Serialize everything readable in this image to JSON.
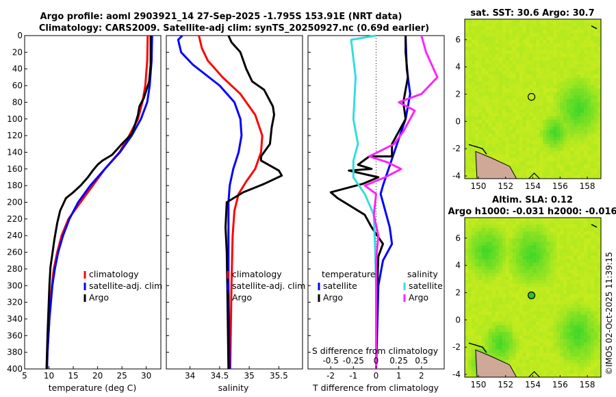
{
  "header": {
    "title_line1": "Argo profile: aoml 2903921_14 27-Sep-2025 -1.795S 153.91E (NRT data)",
    "title_line2": "Climatology: CARS2009. Satellite-adj clim: synTS_20250927.nc (0.69d earlier)"
  },
  "watermark": "©IMOS 02-Oct-2025 11:39:15",
  "colors": {
    "climatology": "#ff0000",
    "satellite": "#0000ff",
    "argo": "#000000",
    "sal_satellite": "#33dddd",
    "sal_argo": "#ff22ff",
    "map_base": "#c8ec1e",
    "map_dark": "#44dd22",
    "land": "#d0a898"
  },
  "chart_data": [
    {
      "type": "line",
      "id": "temperature",
      "xlabel": "temperature (deg C)",
      "ylabel": "",
      "xlim": [
        5,
        33
      ],
      "ylim": [
        400,
        0
      ],
      "xticks": [
        "5",
        "10",
        "15",
        "20",
        "25",
        "30"
      ],
      "yticks": [
        "0",
        "20",
        "40",
        "60",
        "80",
        "100",
        "120",
        "140",
        "160",
        "180",
        "200",
        "220",
        "240",
        "260",
        "280",
        "300",
        "320",
        "340",
        "360",
        "380",
        "400"
      ],
      "legend": [
        "climatology",
        "satellite-adj. clim",
        "Argo"
      ],
      "series": [
        {
          "name": "climatology",
          "color": "#ff0000",
          "points": [
            [
              30.3,
              0
            ],
            [
              30.2,
              30
            ],
            [
              29.8,
              60
            ],
            [
              29.2,
              80
            ],
            [
              28.3,
              100
            ],
            [
              26.5,
              120
            ],
            [
              24.5,
              140
            ],
            [
              21.5,
              160
            ],
            [
              19,
              180
            ],
            [
              16.5,
              200
            ],
            [
              14,
              220
            ],
            [
              12.6,
              240
            ],
            [
              11.7,
              260
            ],
            [
              11,
              280
            ],
            [
              10.6,
              300
            ],
            [
              10.3,
              320
            ],
            [
              10.1,
              340
            ],
            [
              9.9,
              360
            ],
            [
              9.7,
              380
            ],
            [
              9.6,
              400
            ]
          ]
        },
        {
          "name": "satellite-adj. clim",
          "color": "#0000ff",
          "points": [
            [
              31.2,
              0
            ],
            [
              31.1,
              30
            ],
            [
              30.7,
              60
            ],
            [
              30.2,
              80
            ],
            [
              28.9,
              100
            ],
            [
              27,
              120
            ],
            [
              24.6,
              140
            ],
            [
              21.5,
              160
            ],
            [
              18.5,
              180
            ],
            [
              16,
              200
            ],
            [
              14.2,
              220
            ],
            [
              12.9,
              240
            ],
            [
              11.9,
              260
            ],
            [
              11.2,
              280
            ],
            [
              10.7,
              300
            ],
            [
              10.4,
              320
            ],
            [
              10.1,
              340
            ],
            [
              9.9,
              360
            ],
            [
              9.7,
              380
            ],
            [
              9.6,
              400
            ]
          ]
        },
        {
          "name": "Argo",
          "color": "#000000",
          "points": [
            [
              30.9,
              0
            ],
            [
              30.9,
              35
            ],
            [
              30.6,
              55
            ],
            [
              29.5,
              75
            ],
            [
              28.6,
              85
            ],
            [
              28.3,
              95
            ],
            [
              27.8,
              105
            ],
            [
              27,
              118
            ],
            [
              25,
              130
            ],
            [
              23,
              143
            ],
            [
              21,
              150
            ],
            [
              20,
              155
            ],
            [
              19,
              162
            ],
            [
              18,
              170
            ],
            [
              16.5,
              180
            ],
            [
              15,
              188
            ],
            [
              13.5,
              195
            ],
            [
              12.3,
              210
            ],
            [
              11.7,
              225
            ],
            [
              11.1,
              245
            ],
            [
              10.7,
              262
            ],
            [
              10.3,
              278
            ],
            [
              10.1,
              300
            ],
            [
              9.9,
              330
            ],
            [
              9.7,
              360
            ],
            [
              9.5,
              400
            ]
          ]
        }
      ]
    },
    {
      "type": "line",
      "id": "salinity",
      "xlabel": "salinity",
      "xlim": [
        33.6,
        35.9
      ],
      "ylim": [
        400,
        0
      ],
      "xticks": [
        "34",
        "34.5",
        "35",
        "35.5"
      ],
      "legend": [
        "climatology",
        "satellite-adj. clim",
        "Argo"
      ],
      "series": [
        {
          "name": "climatology",
          "color": "#ff0000",
          "points": [
            [
              34.15,
              0
            ],
            [
              34.2,
              15
            ],
            [
              34.3,
              30
            ],
            [
              34.55,
              50
            ],
            [
              34.85,
              70
            ],
            [
              35.1,
              95
            ],
            [
              35.22,
              120
            ],
            [
              35.2,
              140
            ],
            [
              35.1,
              160
            ],
            [
              34.95,
              175
            ],
            [
              34.82,
              190
            ],
            [
              34.75,
              210
            ],
            [
              34.72,
              240
            ],
            [
              34.7,
              300
            ],
            [
              34.68,
              400
            ]
          ]
        },
        {
          "name": "satellite-adj. clim",
          "color": "#0000ff",
          "points": [
            [
              33.87,
              0
            ],
            [
              33.8,
              5
            ],
            [
              33.85,
              20
            ],
            [
              34.05,
              35
            ],
            [
              34.5,
              60
            ],
            [
              34.75,
              80
            ],
            [
              34.85,
              100
            ],
            [
              34.87,
              120
            ],
            [
              34.82,
              140
            ],
            [
              34.73,
              160
            ],
            [
              34.67,
              180
            ],
            [
              34.65,
              200
            ],
            [
              34.65,
              250
            ],
            [
              34.65,
              300
            ],
            [
              34.67,
              400
            ]
          ]
        },
        {
          "name": "Argo",
          "color": "#000000",
          "points": [
            [
              34.65,
              0
            ],
            [
              34.7,
              8
            ],
            [
              34.85,
              20
            ],
            [
              34.95,
              40
            ],
            [
              35.05,
              55
            ],
            [
              35.25,
              65
            ],
            [
              35.4,
              85
            ],
            [
              35.42,
              95
            ],
            [
              35.38,
              110
            ],
            [
              35.35,
              130
            ],
            [
              35.2,
              145
            ],
            [
              35.2,
              150
            ],
            [
              35.5,
              162
            ],
            [
              35.55,
              168
            ],
            [
              35.25,
              178
            ],
            [
              34.9,
              188
            ],
            [
              34.62,
              200
            ],
            [
              34.6,
              230
            ],
            [
              34.62,
              260
            ],
            [
              34.63,
              300
            ],
            [
              34.65,
              400
            ]
          ]
        }
      ]
    },
    {
      "type": "line",
      "id": "differences",
      "xlabel": "T difference from climatology",
      "x2label": "S difference from climatology",
      "xlim": [
        -3,
        3
      ],
      "ylim": [
        400,
        0
      ],
      "xticks": [
        "-2",
        "-1",
        "0",
        "1",
        "2"
      ],
      "x2ticks": [
        "-0.5",
        "-0.25",
        "0",
        "0.25",
        "0.5"
      ],
      "legend_title_temperature": "temperature",
      "legend_title_salinity": "salinity",
      "legend": [
        "satellite",
        "Argo",
        "satellite",
        "Argo"
      ],
      "series": [
        {
          "name": "temperature satellite",
          "color": "#0000ff",
          "points": [
            [
              1.3,
              0
            ],
            [
              1.35,
              40
            ],
            [
              1.5,
              70
            ],
            [
              1.3,
              100
            ],
            [
              0.8,
              140
            ],
            [
              0.3,
              180
            ],
            [
              0.2,
              190
            ],
            [
              0.4,
              210
            ],
            [
              0.6,
              230
            ],
            [
              0.7,
              250
            ],
            [
              0.3,
              270
            ],
            [
              0.1,
              300
            ],
            [
              0.05,
              350
            ],
            [
              0,
              400
            ]
          ]
        },
        {
          "name": "temperature Argo",
          "color": "#000000",
          "points": [
            [
              1.3,
              0
            ],
            [
              1.3,
              20
            ],
            [
              1.4,
              50
            ],
            [
              1.2,
              80
            ],
            [
              1.3,
              100
            ],
            [
              0.7,
              130
            ],
            [
              0.7,
              145
            ],
            [
              -0.3,
              145
            ],
            [
              -0.8,
              155
            ],
            [
              -0.2,
              160
            ],
            [
              -1.2,
              162
            ],
            [
              0.1,
              170
            ],
            [
              -0.6,
              178
            ],
            [
              -2.0,
              188
            ],
            [
              -1.7,
              195
            ],
            [
              -0.5,
              215
            ],
            [
              -0.2,
              230
            ],
            [
              0.3,
              250
            ],
            [
              0.1,
              265
            ],
            [
              0.05,
              300
            ],
            [
              0,
              400
            ]
          ]
        },
        {
          "name": "salinity satellite",
          "color": "#33dddd",
          "points": [
            [
              0,
              0
            ],
            [
              -1.1,
              5
            ],
            [
              -0.9,
              50
            ],
            [
              -1.0,
              100
            ],
            [
              -0.8,
              130
            ],
            [
              -1.0,
              150
            ],
            [
              -1.0,
              170
            ],
            [
              -0.5,
              190
            ],
            [
              -0.1,
              215
            ],
            [
              -0.05,
              250
            ],
            [
              0,
              300
            ],
            [
              0,
              400
            ]
          ]
        },
        {
          "name": "salinity Argo",
          "color": "#ff22ff",
          "points": [
            [
              2.0,
              0
            ],
            [
              2.2,
              20
            ],
            [
              2.7,
              50
            ],
            [
              2.0,
              70
            ],
            [
              1.0,
              80
            ],
            [
              1.7,
              90
            ],
            [
              1.2,
              115
            ],
            [
              0.8,
              130
            ],
            [
              -0.3,
              145
            ],
            [
              0.5,
              152
            ],
            [
              1.1,
              160
            ],
            [
              0.4,
              170
            ],
            [
              -0.5,
              180
            ],
            [
              0,
              190
            ],
            [
              -0.1,
              215
            ],
            [
              0.1,
              240
            ],
            [
              0,
              270
            ],
            [
              0,
              400
            ]
          ]
        }
      ]
    },
    {
      "type": "heatmap",
      "id": "sst_map",
      "title": "sat. SST: 30.6 Argo: 30.7",
      "xlim": [
        149,
        159
      ],
      "ylim": [
        -4.2,
        7.5
      ],
      "xticks": [
        "150",
        "152",
        "154",
        "156",
        "158"
      ],
      "yticks": [
        "-4",
        "-2",
        "0",
        "2",
        "4",
        "6"
      ],
      "marker": {
        "lon": 153.9,
        "lat": 1.8
      }
    },
    {
      "type": "heatmap",
      "id": "sla_map",
      "title": "Altim. SLA: 0.12",
      "subtitle": "Argo h1000: -0.031 h2000: -0.016",
      "xlim": [
        149,
        159
      ],
      "ylim": [
        -4.2,
        7.5
      ],
      "xticks": [
        "150",
        "152",
        "154",
        "156",
        "158"
      ],
      "yticks": [
        "-4",
        "-2",
        "0",
        "2",
        "4",
        "6"
      ],
      "marker": {
        "lon": 153.9,
        "lat": 1.8
      }
    }
  ]
}
